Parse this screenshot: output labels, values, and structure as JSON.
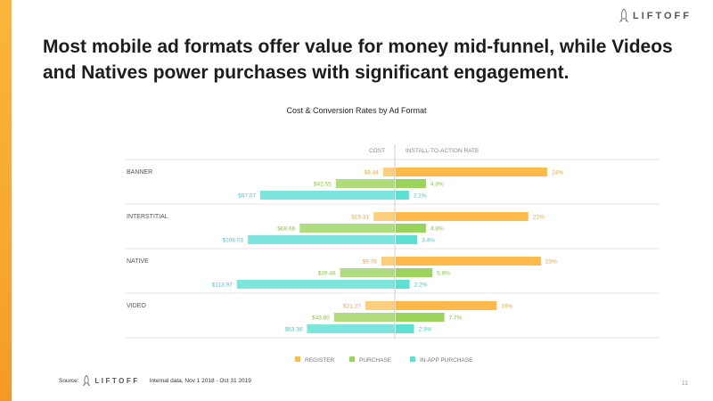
{
  "brand": {
    "name": "LIFTOFF",
    "icon": "rocket-icon"
  },
  "headline": "Most mobile ad formats offer value for money mid-funnel, while Videos and Natives power purchases with significant engagement.",
  "footer": {
    "source_label": "Source:",
    "brand": "LIFTOFF",
    "note": "Internal data, Nov 1 2018 - Oct 31 2019"
  },
  "page_number": "11",
  "colors": {
    "register": "#fdb94a",
    "purchase": "#9bd45c",
    "inapp": "#5ddfd2",
    "accent": "#f7a82f"
  },
  "chart_data": {
    "type": "bar",
    "title": "Cost & Conversion Rates by Ad Format",
    "left_header": "COST",
    "right_header": "INSTALL-TO-ACTION RATE",
    "categories": [
      "BANNER",
      "INTERSTITIAL",
      "NATIVE",
      "VIDEO"
    ],
    "cost_series": [
      {
        "name": "REGISTER",
        "values": [
          8.44,
          15.31,
          9.78,
          21.27
        ],
        "labels": [
          "$8.44",
          "$15.31",
          "$9.78",
          "$21.27"
        ]
      },
      {
        "name": "PURCHASE",
        "values": [
          42.55,
          68.66,
          39.48,
          43.8
        ],
        "labels": [
          "$42.55",
          "$68.66",
          "$39.48",
          "$43.80"
        ]
      },
      {
        "name": "IN-APP PURCHASE",
        "values": [
          97.07,
          106.03,
          113.97,
          63.36
        ],
        "labels": [
          "$97.07",
          "$106.03",
          "$113.97",
          "$63.36"
        ]
      }
    ],
    "rate_series": [
      {
        "name": "REGISTER",
        "values": [
          24,
          21,
          23,
          16
        ],
        "labels": [
          "24%",
          "21%",
          "23%",
          "16%"
        ]
      },
      {
        "name": "PURCHASE",
        "values": [
          4.8,
          4.8,
          5.8,
          7.7
        ],
        "labels": [
          "4.8%",
          "4.8%",
          "5.8%",
          "7.7%"
        ]
      },
      {
        "name": "IN-APP PURCHASE",
        "values": [
          2.1,
          3.4,
          2.2,
          2.9
        ],
        "labels": [
          "2.1%",
          "3.4%",
          "2.2%",
          "2.9%"
        ]
      }
    ],
    "legend": [
      "REGISTER",
      "PURCHASE",
      "IN-APP PURCHASE"
    ],
    "legend_position": "bottom-center"
  }
}
